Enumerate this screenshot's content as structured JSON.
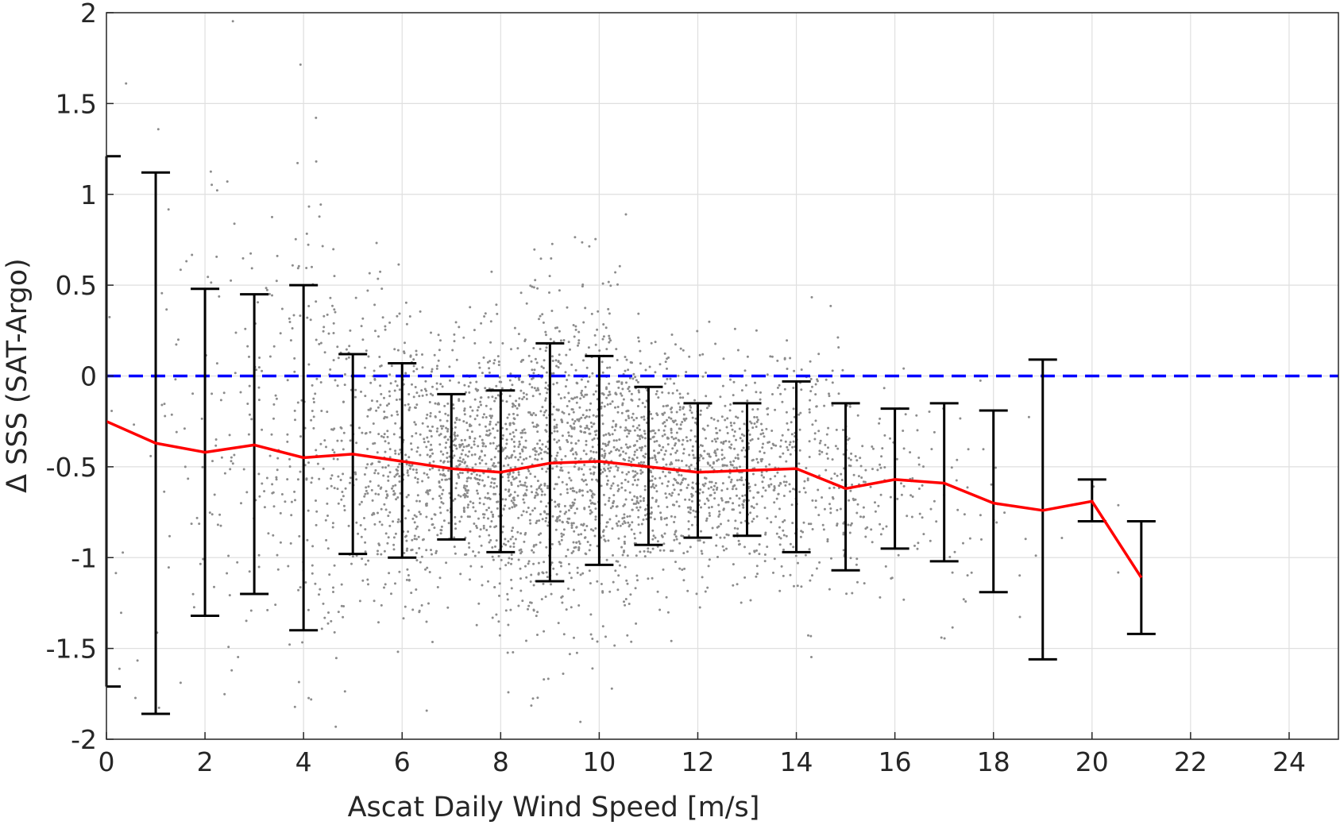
{
  "chart_data": {
    "type": "scatter",
    "title": "",
    "xlabel": "Ascat Daily Wind Speed [m/s]",
    "ylabel": "Δ SSS (SAT-Argo)",
    "xlim": [
      0,
      25
    ],
    "ylim": [
      -2,
      2
    ],
    "xticks": [
      0,
      2,
      4,
      6,
      8,
      10,
      12,
      14,
      16,
      18,
      20,
      22,
      24
    ],
    "yticks": [
      -2,
      -1.5,
      -1,
      -0.5,
      0,
      0.5,
      1,
      1.5,
      2
    ],
    "xtick_labels": [
      "0",
      "2",
      "4",
      "6",
      "8",
      "10",
      "12",
      "14",
      "16",
      "18",
      "20",
      "22",
      "24"
    ],
    "ytick_labels": [
      "-2",
      "-1.5",
      "-1",
      "-0.5",
      "0",
      "0.5",
      "1",
      "1.5",
      "2"
    ],
    "grid": true,
    "reference_line": {
      "y": 0,
      "style": "dashed",
      "color": "#0000ff"
    },
    "mean_line": {
      "color": "#ff0000",
      "x": [
        0,
        1,
        2,
        3,
        4,
        5,
        6,
        7,
        8,
        9,
        10,
        11,
        12,
        13,
        14,
        15,
        16,
        17,
        18,
        19,
        20,
        21
      ],
      "y": [
        -0.25,
        -0.37,
        -0.42,
        -0.38,
        -0.45,
        -0.43,
        -0.47,
        -0.51,
        -0.53,
        -0.48,
        -0.47,
        -0.5,
        -0.53,
        -0.52,
        -0.51,
        -0.62,
        -0.57,
        -0.59,
        -0.7,
        -0.74,
        -0.69,
        -1.11
      ]
    },
    "error_bars": {
      "color": "#000000",
      "x": [
        0,
        1,
        2,
        3,
        4,
        5,
        6,
        7,
        8,
        9,
        10,
        11,
        12,
        13,
        14,
        15,
        16,
        17,
        18,
        19,
        20,
        21
      ],
      "upper": [
        1.21,
        1.12,
        0.48,
        0.45,
        0.5,
        0.12,
        0.07,
        -0.1,
        -0.08,
        0.18,
        0.11,
        -0.06,
        -0.15,
        -0.15,
        -0.03,
        -0.15,
        -0.18,
        -0.15,
        -0.19,
        0.09,
        -0.57,
        -0.8
      ],
      "lower": [
        -1.71,
        -1.86,
        -1.32,
        -1.2,
        -1.4,
        -0.98,
        -1.0,
        -0.9,
        -0.97,
        -1.13,
        -1.04,
        -0.93,
        -0.89,
        -0.88,
        -0.97,
        -1.07,
        -0.95,
        -1.02,
        -1.19,
        -1.56,
        -0.8,
        -1.42
      ]
    },
    "scatter": {
      "color": "#8c8c8c",
      "description_count": 3600
    }
  },
  "colors": {
    "scatter": "#8c8c8c",
    "grid": "#dfdfdf",
    "axis": "#262626"
  }
}
